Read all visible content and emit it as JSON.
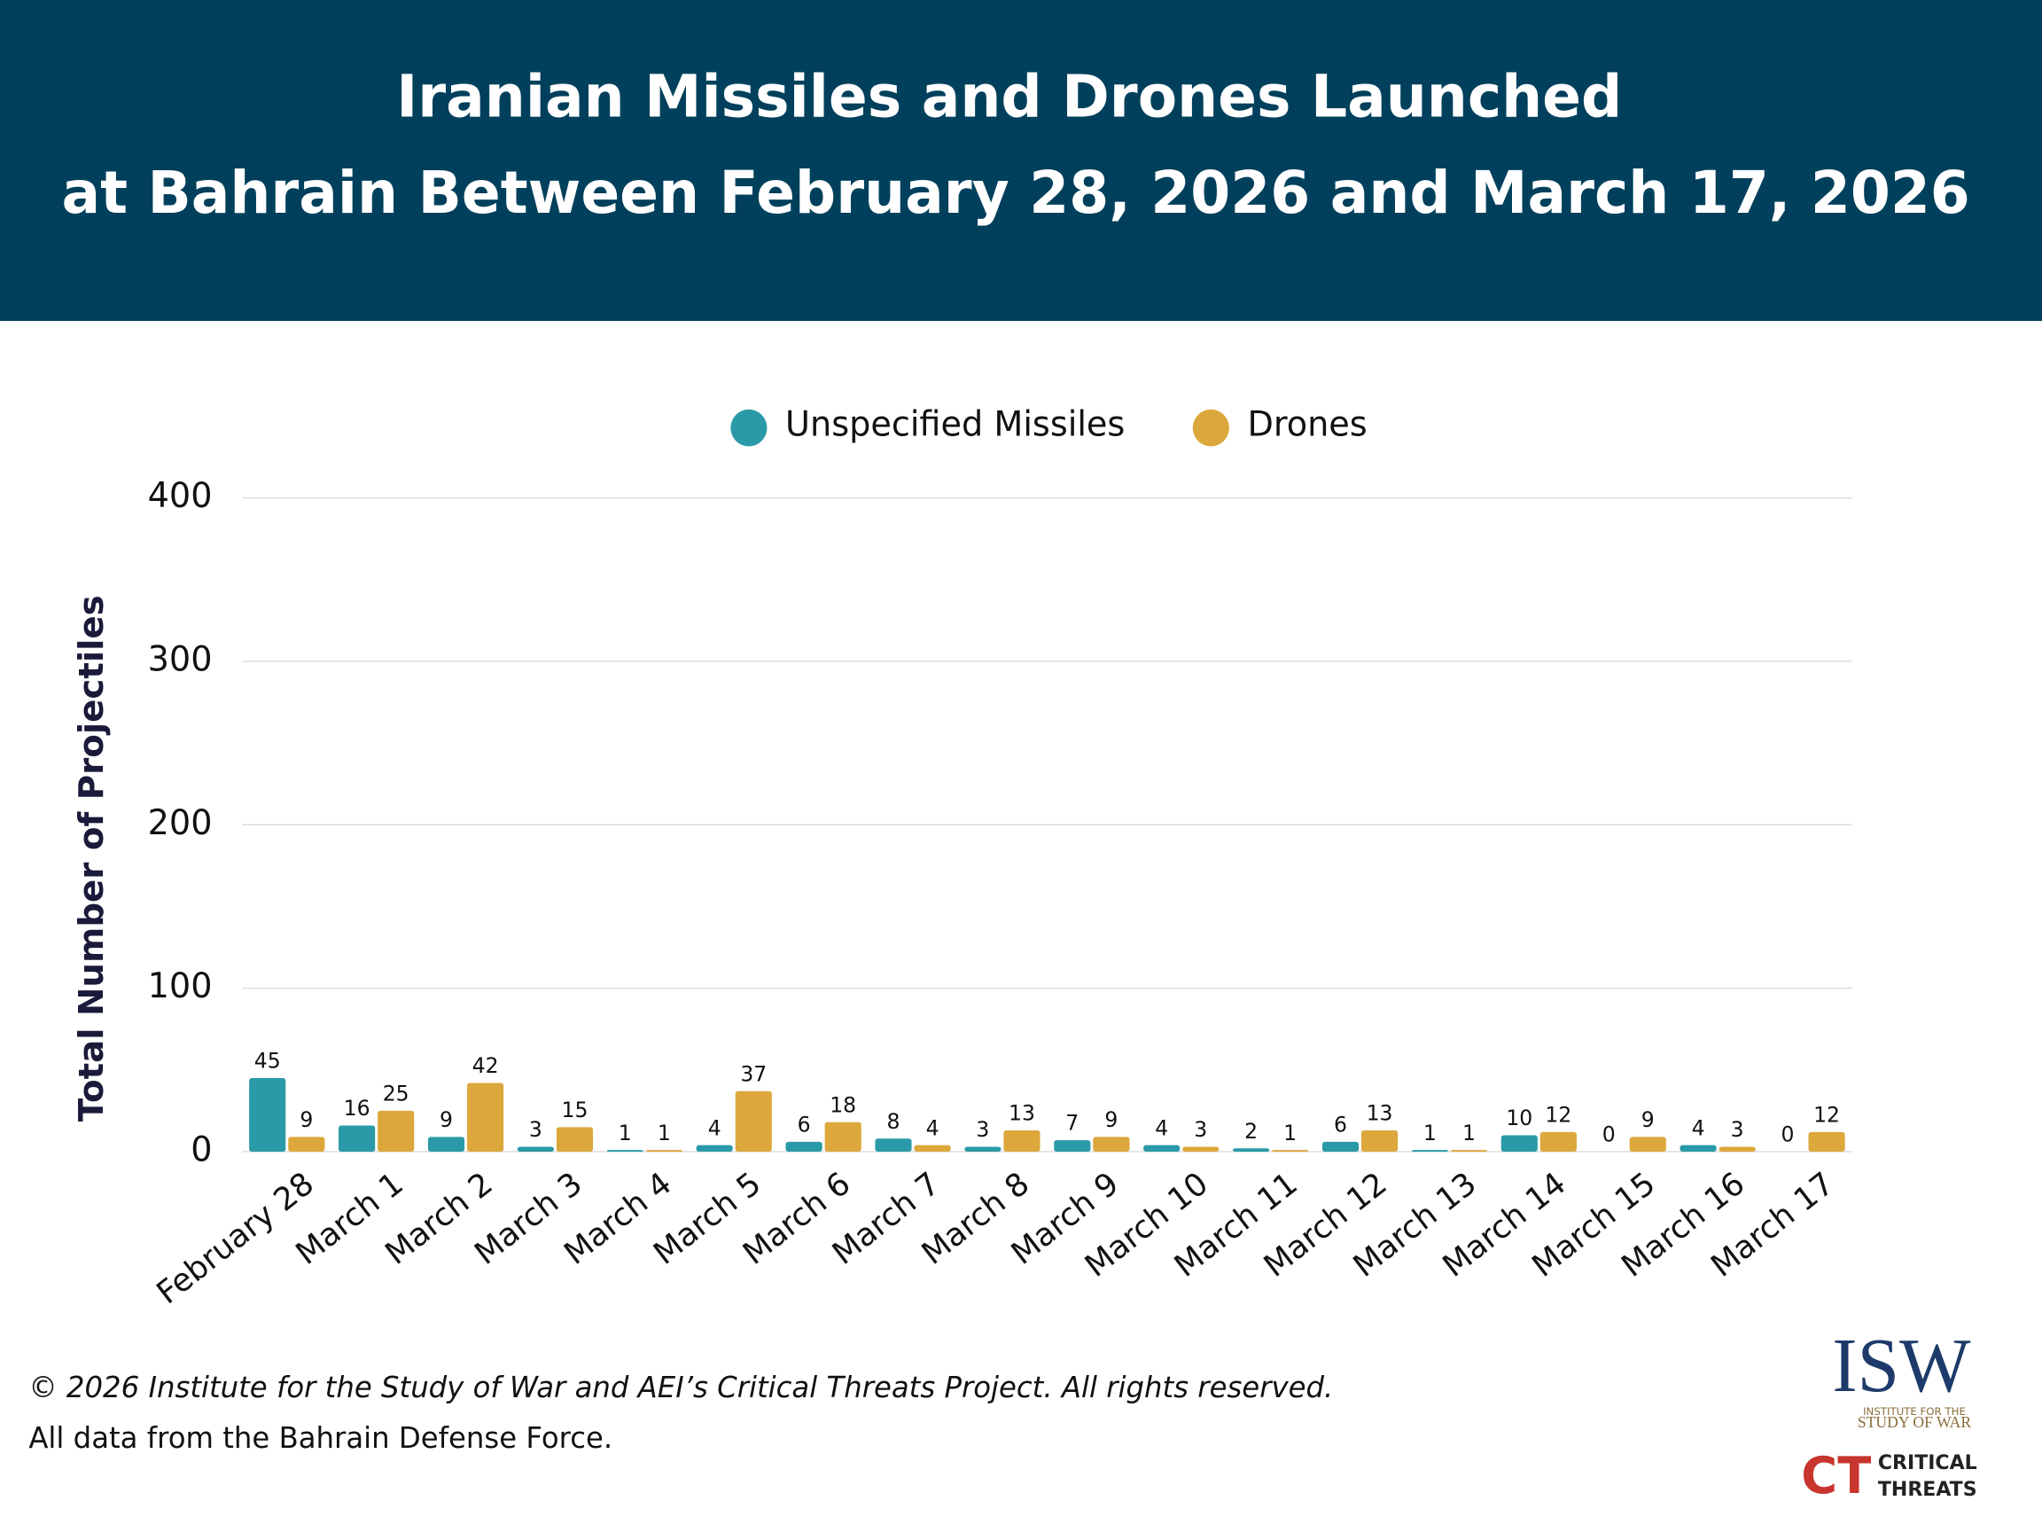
{
  "chart_data": {
    "type": "bar",
    "title": [
      "Iranian Missiles and Drones Launched",
      "at Bahrain Between February 28, 2026 and March 17, 2026"
    ],
    "y_label": "Total Number of Projectiles",
    "categories": [
      "February 28",
      "March 1",
      "March 2",
      "March 3",
      "March 4",
      "March 5",
      "March 6",
      "March 7",
      "March 8",
      "March 9",
      "March 10",
      "March 11",
      "March 12",
      "March 13",
      "March 14",
      "March 15",
      "March 16",
      "March 17"
    ],
    "series": [
      {
        "name": "Unspecified Missiles",
        "color": "#2a9aa8",
        "values": [
          45,
          16,
          9,
          3,
          1,
          4,
          6,
          8,
          3,
          7,
          4,
          2,
          6,
          1,
          10,
          0,
          4,
          0
        ]
      },
      {
        "name": "Drones",
        "color": "#dca83c",
        "values": [
          9,
          25,
          42,
          15,
          1,
          37,
          18,
          4,
          13,
          9,
          3,
          1,
          13,
          1,
          12,
          9,
          3,
          12
        ]
      }
    ],
    "ylim": [
      0,
      400
    ],
    "yticks": [
      0,
      100,
      200,
      300,
      400
    ],
    "grid": true,
    "legend": "top"
  },
  "footer": {
    "copyright": "© 2026 Institute for the Study of War and AEI’s Critical Threats Project. All rights reserved.",
    "source": "All data from the Bahrain Defense Force."
  },
  "logos": {
    "isw": "ISW",
    "isw_sub1": "INSTITUTE FOR THE",
    "isw_sub2": "STUDY OF WAR",
    "ct": "CT",
    "ct_line1": "CRITICAL",
    "ct_line2": "THREATS"
  }
}
